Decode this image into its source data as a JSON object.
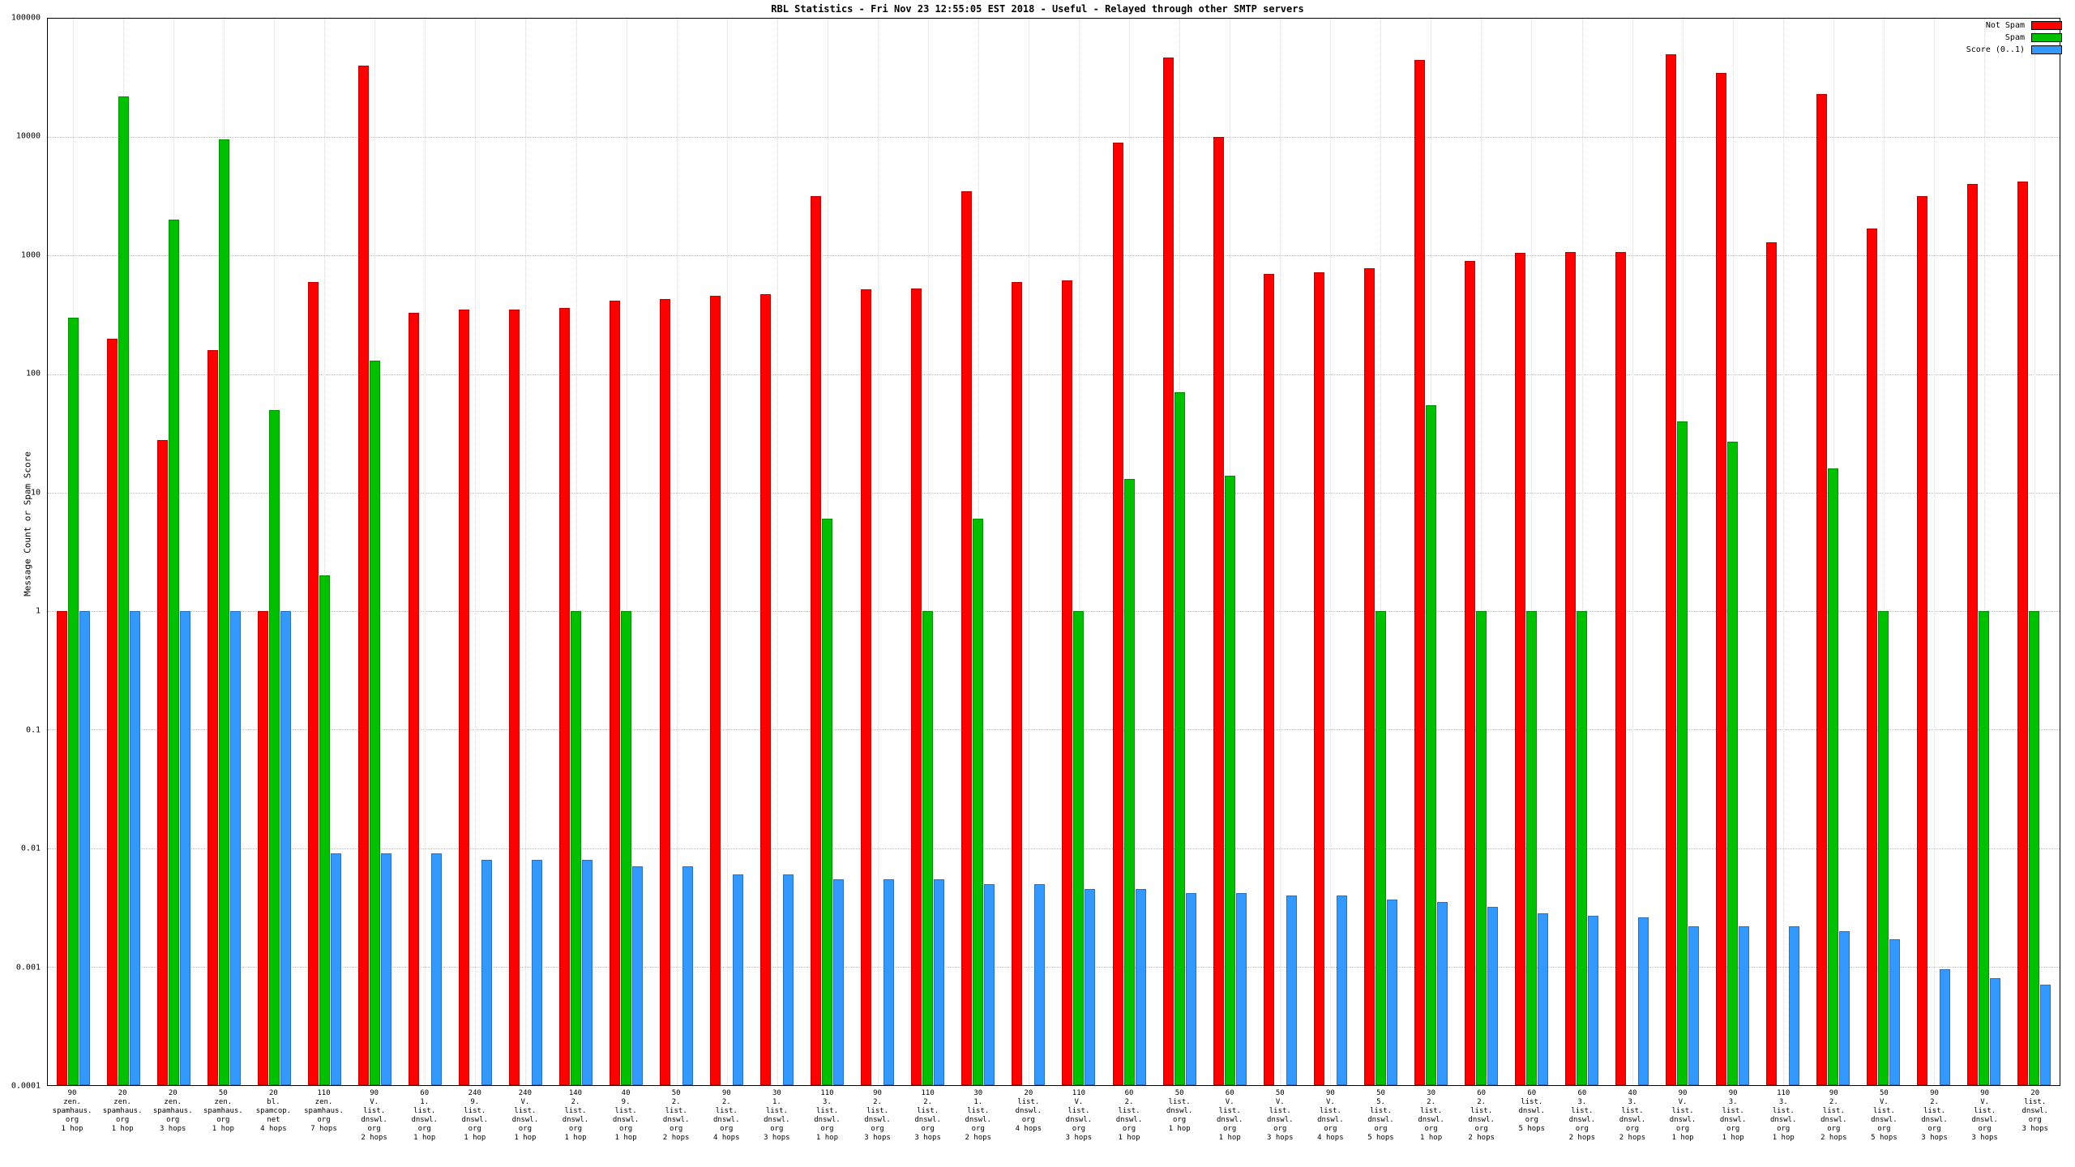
{
  "page": {
    "background": "#ffffff"
  },
  "chart_data": {
    "type": "bar",
    "title": "RBL Statistics - Fri Nov 23 12:55:05 EST 2018 - Useful - Relayed through other SMTP servers",
    "ylabel": "Message Count or Spam Score",
    "y_scale": "log",
    "ylim": [
      0.0001,
      100000
    ],
    "y_ticks": [
      "100000",
      "10000",
      "1000",
      "100",
      "10",
      "1",
      "0.1",
      "0.01",
      "0.001",
      "0.0001"
    ],
    "grid": true,
    "legend_position": "top-right",
    "categories": [
      "90\nzen.\nspamhaus.\norg\n1 hop",
      "20\nzen.\nspamhaus.\norg\n1 hop",
      "20\nzen.\nspamhaus.\norg\n3 hops",
      "50\nzen.\nspamhaus.\norg\n1 hop",
      "20\nbl.\nspamcop.\nnet\n4 hops",
      "110\nzen.\nspamhaus.\norg\n7 hops",
      "90\nV.\nlist.\ndnswl.\norg\n2 hops",
      "60\n1.\nlist.\ndnswl.\norg\n1 hop",
      "240\n9.\nlist.\ndnswl.\norg\n1 hop",
      "240\nV.\nlist.\ndnswl.\norg\n1 hop",
      "140\n2.\nlist.\ndnswl.\norg\n1 hop",
      "40\n9.\nlist.\ndnswl.\norg\n1 hop",
      "50\n2.\nlist.\ndnswl.\norg\n2 hops",
      "90\n2.\nlist.\ndnswl.\norg\n4 hops",
      "30\n1.\nlist.\ndnswl.\norg\n3 hops",
      "110\n3.\nlist.\ndnswl.\norg\n1 hop",
      "90\n2.\nlist.\ndnswl.\norg\n3 hops",
      "110\n2.\nlist.\ndnswl.\norg\n3 hops",
      "30\n1.\nlist.\ndnswl.\norg\n2 hops",
      "20\nlist.\ndnswl.\norg\n4 hops",
      "110\nV.\nlist.\ndnswl.\norg\n3 hops",
      "60\n2.\nlist.\ndnswl.\norg\n1 hop",
      "50\nlist.\ndnswl.\norg\n1 hop",
      "60\nV.\nlist.\ndnswl.\norg\n1 hop",
      "50\nV.\nlist.\ndnswl.\norg\n3 hops",
      "90\nV.\nlist.\ndnswl.\norg\n4 hops",
      "50\n5.\nlist.\ndnswl.\norg\n5 hops",
      "30\n2.\nlist.\ndnswl.\norg\n1 hop",
      "60\n2.\nlist.\ndnswl.\norg\n2 hops",
      "60\nlist.\ndnswl.\norg\n5 hops",
      "60\n3.\nlist.\ndnswl.\norg\n2 hops",
      "40\n3.\nlist.\ndnswl.\norg\n2 hops",
      "90\nV.\nlist.\ndnswl.\norg\n1 hop",
      "90\n3.\nlist.\ndnswl.\norg\n1 hop",
      "110\n3.\nlist.\ndnswl.\norg\n1 hop",
      "90\n2.\nlist.\ndnswl.\norg\n2 hops",
      "50\nV.\nlist.\ndnswl.\norg\n5 hops",
      "90\n2.\nlist.\ndnswl.\norg\n3 hops",
      "90\nV.\nlist.\ndnswl.\norg\n3 hops",
      "20\nlist.\ndnswl.\norg\n3 hops"
    ],
    "series": [
      {
        "name": "Not Spam",
        "key": "not-spam",
        "color": "#ff0000",
        "values": [
          1,
          200,
          28,
          160,
          1,
          600,
          40000,
          330,
          350,
          350,
          360,
          420,
          430,
          460,
          470,
          3200,
          520,
          530,
          3500,
          600,
          620,
          9000,
          47000,
          10000,
          700,
          720,
          780,
          45000,
          900,
          1050,
          1080,
          1080,
          50000,
          35000,
          1300,
          23000,
          1700,
          3200,
          4000,
          4200
        ]
      },
      {
        "name": "Spam",
        "key": "spam",
        "color": "#00c000",
        "values": [
          300,
          22000,
          2000,
          9500,
          50,
          2,
          130,
          null,
          null,
          null,
          1,
          1,
          null,
          null,
          null,
          6,
          null,
          1,
          6,
          null,
          1,
          13,
          70,
          14,
          null,
          null,
          1,
          55,
          1,
          1,
          1,
          null,
          40,
          27,
          null,
          16,
          1,
          null,
          1,
          1
        ]
      },
      {
        "name": "Score (0..1)",
        "key": "score",
        "color": "#3399ff",
        "values": [
          1,
          1,
          1,
          1,
          1,
          0.009,
          0.009,
          0.009,
          0.008,
          0.008,
          0.008,
          0.007,
          0.007,
          0.006,
          0.006,
          0.0055,
          0.0055,
          0.0055,
          0.005,
          0.005,
          0.0045,
          0.0045,
          0.0042,
          0.0042,
          0.004,
          0.004,
          0.0037,
          0.0035,
          0.0032,
          0.0028,
          0.0027,
          0.0026,
          0.0022,
          0.0022,
          0.0022,
          0.002,
          0.0017,
          0.00095,
          0.0008,
          0.0007
        ]
      }
    ]
  }
}
